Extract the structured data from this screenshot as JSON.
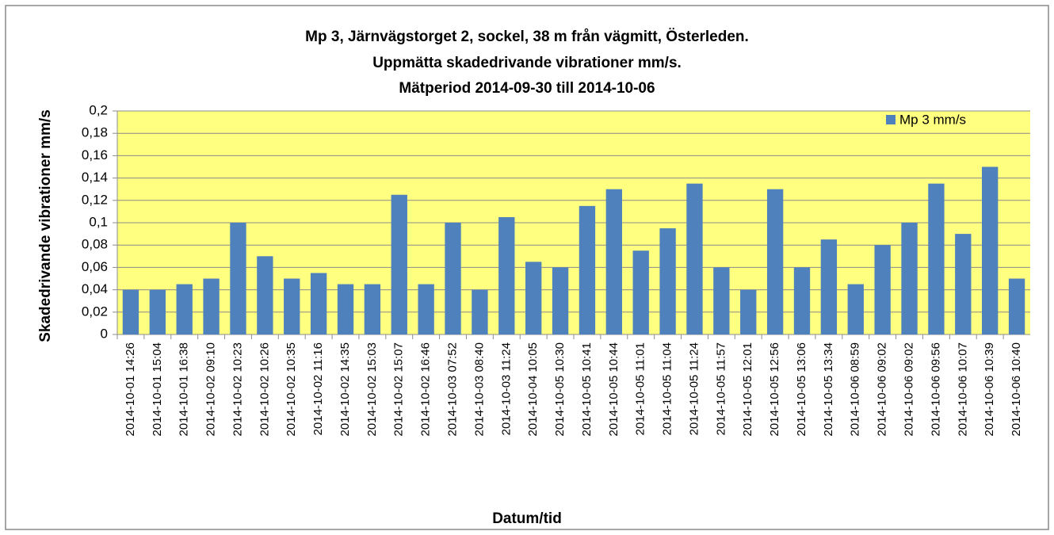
{
  "chart_data": {
    "type": "bar",
    "title": [
      "Mp 3, Järnvägstorget 2, sockel, 38 m från vägmitt, Österleden.",
      "Uppmätta skadedrivande vibrationer mm/s.",
      "Mätperiod 2014-09-30 till 2014-10-06"
    ],
    "x_label": "Datum/tid",
    "y_label": "Skadedrivande vibrationer mm/s",
    "categories": [
      "2014-10-01 14:26",
      "2014-10-01 15:04",
      "2014-10-01 16:38",
      "2014-10-02 09:10",
      "2014-10-02 10:23",
      "2014-10-02 10:26",
      "2014-10-02 10:35",
      "2014-10-02 11:16",
      "2014-10-02 14:35",
      "2014-10-02 15:03",
      "2014-10-02 15:07",
      "2014-10-02 16:46",
      "2014-10-03 07:52",
      "2014-10-03 08:40",
      "2014-10-03 11:24",
      "2014-10-04 10:05",
      "2014-10-05 10:30",
      "2014-10-05 10:41",
      "2014-10-05 10:44",
      "2014-10-05 11:01",
      "2014-10-05 11:04",
      "2014-10-05 11:24",
      "2014-10-05 11:57",
      "2014-10-05 12:01",
      "2014-10-05 12:56",
      "2014-10-05 13:06",
      "2014-10-05 13:34",
      "2014-10-06 08:59",
      "2014-10-06 09:02",
      "2014-10-06 09:02",
      "2014-10-06 09:56",
      "2014-10-06 10:07",
      "2014-10-06 10:39",
      "2014-10-06 10:40"
    ],
    "series": [
      {
        "name": "Mp 3 mm/s",
        "color": "#4f81bd",
        "values": [
          0.04,
          0.04,
          0.045,
          0.05,
          0.1,
          0.07,
          0.05,
          0.055,
          0.045,
          0.045,
          0.125,
          0.045,
          0.1,
          0.04,
          0.105,
          0.065,
          0.06,
          0.115,
          0.13,
          0.075,
          0.095,
          0.135,
          0.06,
          0.04,
          0.13,
          0.06,
          0.085,
          0.045,
          0.08,
          0.1,
          0.135,
          0.09,
          0.15,
          0.05
        ]
      }
    ],
    "ylim": [
      0,
      0.2
    ],
    "yticks": [
      0,
      {
        "value": 0.02,
        "label": "0,02"
      },
      {
        "value": 0.04,
        "label": "0,04"
      },
      {
        "value": 0.06,
        "label": "0,06"
      },
      {
        "value": 0.08,
        "label": "0,08"
      },
      {
        "value": 0.1,
        "label": "0,1"
      },
      {
        "value": 0.12,
        "label": "0,12"
      },
      {
        "value": 0.14,
        "label": "0,14"
      },
      {
        "value": 0.16,
        "label": "0,16"
      },
      {
        "value": 0.18,
        "label": "0,18"
      },
      {
        "value": 0.2,
        "label": "0,2"
      }
    ],
    "grid": true,
    "legend": "top-right",
    "plot_background": "#ffff80"
  }
}
